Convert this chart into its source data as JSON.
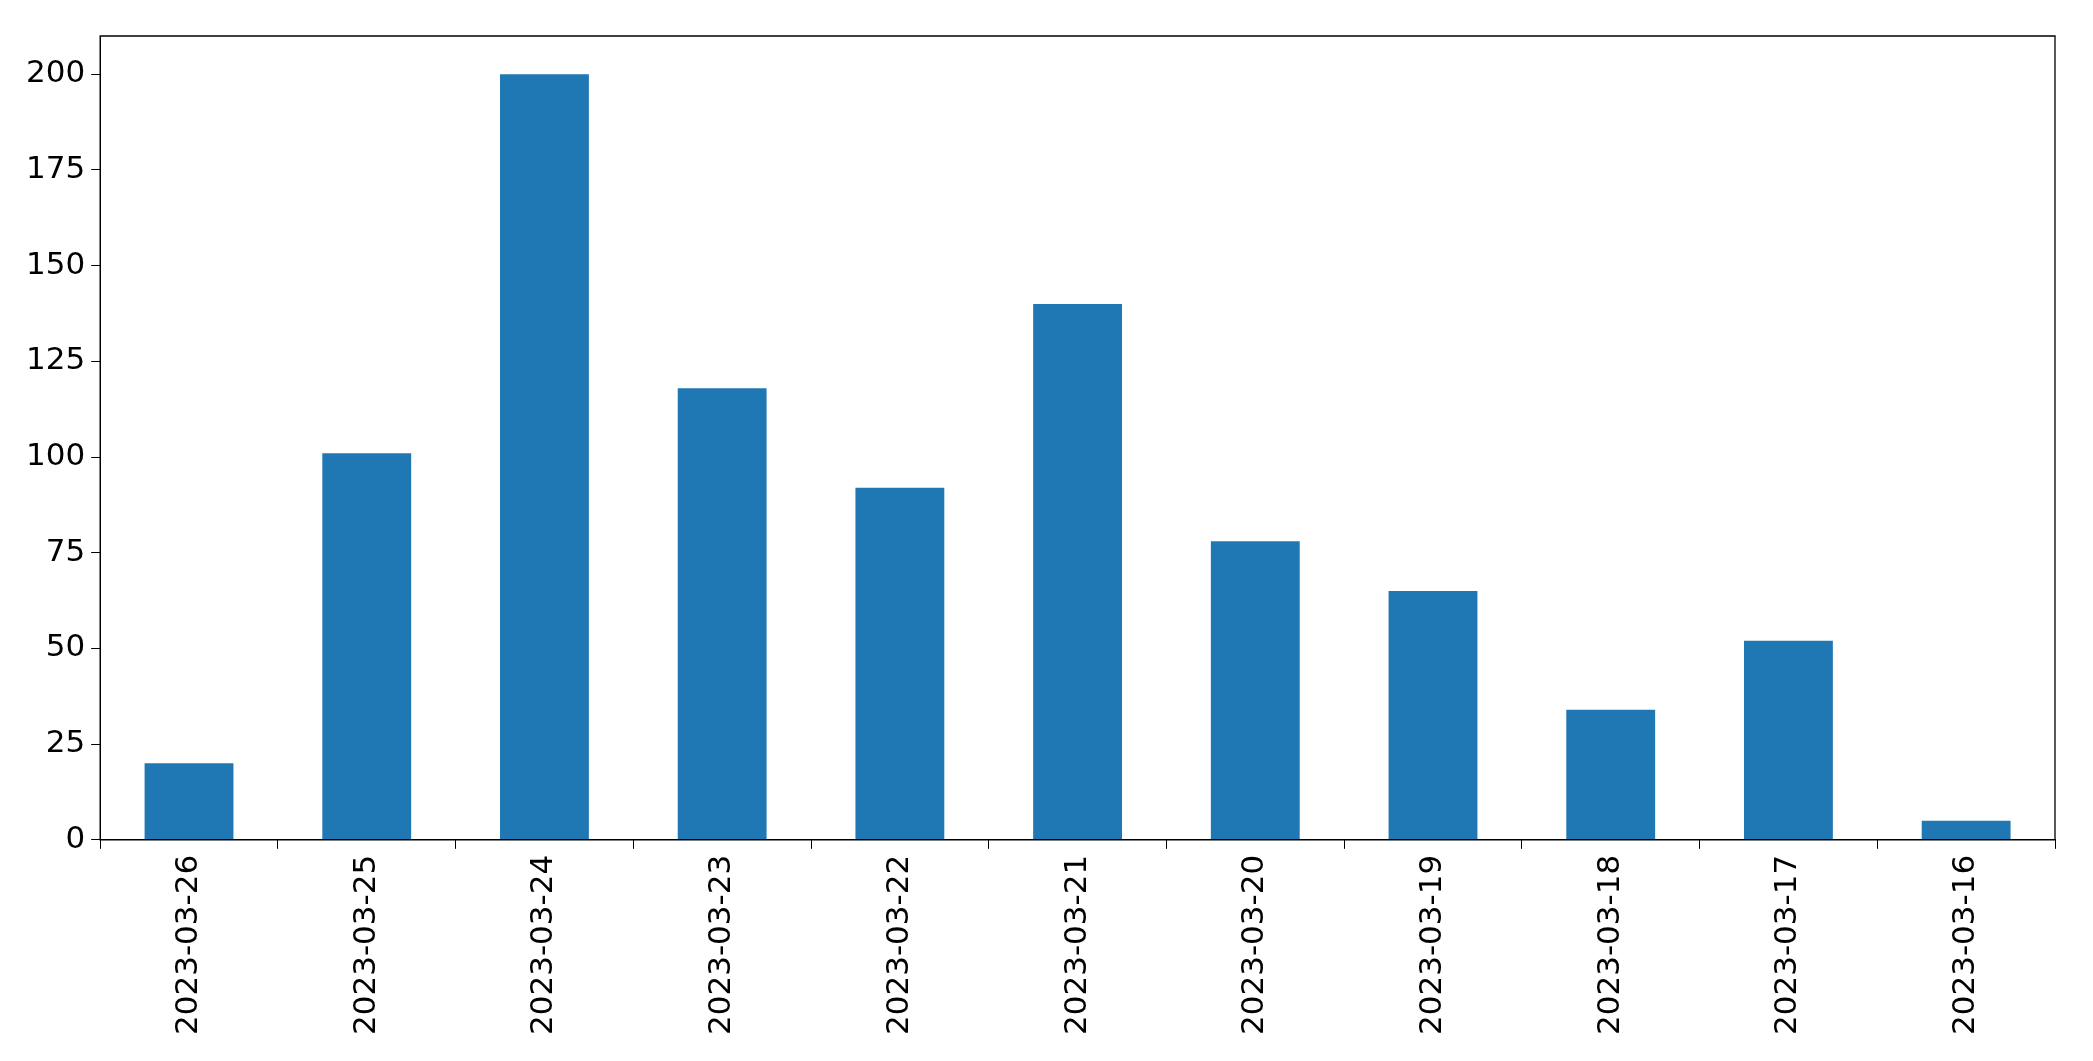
{
  "chart_data": {
    "type": "bar",
    "categories": [
      "2023-03-26",
      "2023-03-25",
      "2023-03-24",
      "2023-03-23",
      "2023-03-22",
      "2023-03-21",
      "2023-03-20",
      "2023-03-19",
      "2023-03-18",
      "2023-03-17",
      "2023-03-16"
    ],
    "values": [
      20,
      101,
      200,
      118,
      92,
      140,
      78,
      65,
      34,
      52,
      5
    ],
    "color": "#1f77b4",
    "ylim": [
      0,
      210
    ],
    "yticks": [
      0,
      25,
      50,
      75,
      100,
      125,
      150,
      175,
      200
    ],
    "grid": false,
    "legend": false
  }
}
